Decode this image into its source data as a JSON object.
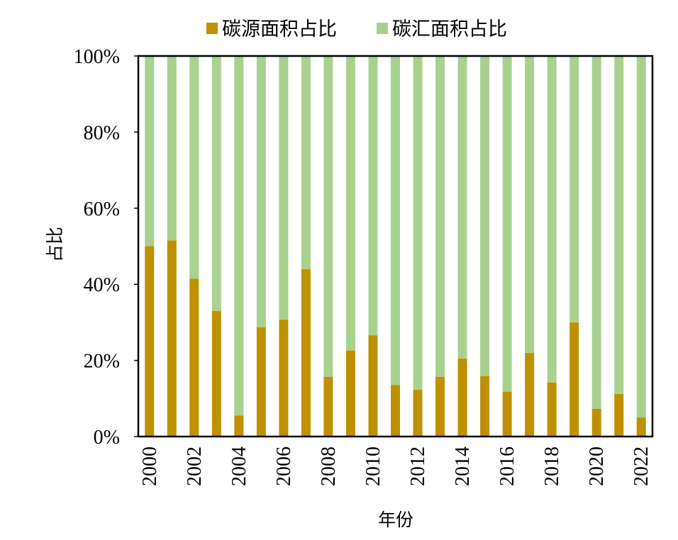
{
  "chart_data": {
    "type": "bar",
    "stacked": true,
    "percent_stacked": true,
    "categories": [
      "2000",
      "2001",
      "2002",
      "2003",
      "2004",
      "2005",
      "2006",
      "2007",
      "2008",
      "2009",
      "2010",
      "2011",
      "2012",
      "2013",
      "2014",
      "2015",
      "2016",
      "2017",
      "2018",
      "2019",
      "2020",
      "2021",
      "2022"
    ],
    "x_tick_labels": [
      "2000",
      "2002",
      "2004",
      "2006",
      "2008",
      "2010",
      "2012",
      "2014",
      "2016",
      "2018",
      "2020",
      "2022"
    ],
    "series": [
      {
        "name": "碳源面积占比",
        "color": "#BF9000",
        "values": [
          0.5,
          0.515,
          0.415,
          0.33,
          0.055,
          0.287,
          0.307,
          0.44,
          0.157,
          0.226,
          0.266,
          0.135,
          0.123,
          0.157,
          0.205,
          0.159,
          0.118,
          0.22,
          0.142,
          0.3,
          0.073,
          0.112,
          0.05
        ]
      },
      {
        "name": "碳汇面积占比",
        "color": "#A9D18E",
        "values": [
          0.5,
          0.485,
          0.585,
          0.67,
          0.945,
          0.713,
          0.693,
          0.56,
          0.843,
          0.774,
          0.734,
          0.865,
          0.877,
          0.843,
          0.795,
          0.841,
          0.882,
          0.78,
          0.858,
          0.7,
          0.927,
          0.888,
          0.95
        ]
      }
    ],
    "y_tick_labels": [
      "0%",
      "20%",
      "40%",
      "60%",
      "80%",
      "100%"
    ],
    "ylim": [
      0,
      1
    ],
    "xlabel": "年份",
    "ylabel": "占比",
    "legend_position": "top",
    "grid": false
  }
}
